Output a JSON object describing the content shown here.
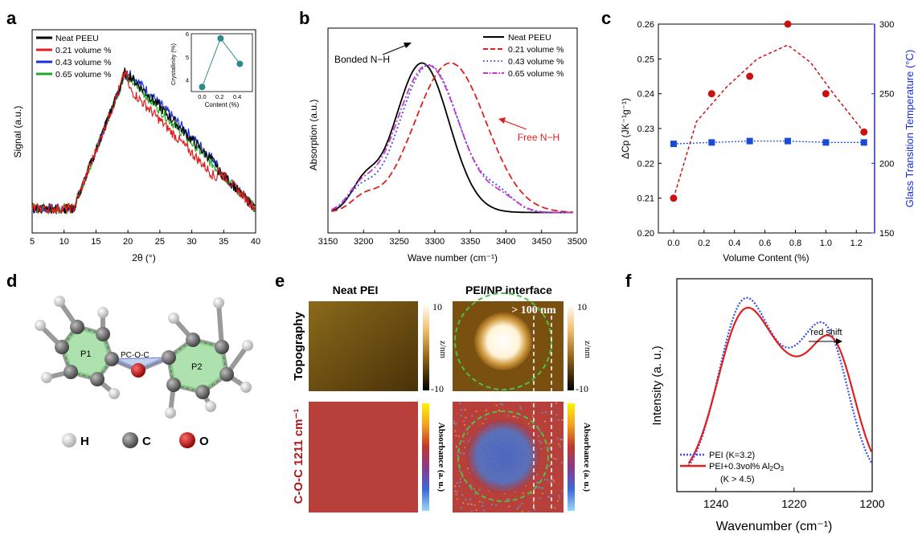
{
  "panels": {
    "a": "a",
    "b": "b",
    "c": "c",
    "d": "d",
    "e": "e",
    "f": "f"
  },
  "colors": {
    "black": "#000000",
    "red": "#e02020",
    "blue": "#1a2ee0",
    "green": "#22aa22",
    "teal": "#2e8a8a",
    "dashred": "#e02020",
    "dotblue": "#3a4de8",
    "magenta": "#cc33cc",
    "ptred": "#cc1111",
    "ptblue": "#1a4ad8",
    "ringgreen": "#49c24a"
  },
  "chart_data": [
    {
      "panel": "a",
      "type": "line",
      "xlabel": "2θ (°)",
      "ylabel": "Signal (a.u.)",
      "xlim": [
        5,
        40
      ],
      "xticks": [
        "5",
        "10",
        "15",
        "20",
        "25",
        "30",
        "35",
        "40"
      ],
      "series": [
        {
          "name": "Neat PEEU",
          "color": "#000000"
        },
        {
          "name": "0.21 volume %",
          "color": "#e02020"
        },
        {
          "name": "0.43 volume %",
          "color": "#1a2ee0"
        },
        {
          "name": "0.65 volume %",
          "color": "#22aa22"
        }
      ],
      "inset": {
        "type": "line",
        "xlabel": "Content (%)",
        "ylabel": "Crystallinity (%)",
        "x": [
          0.0,
          0.21,
          0.43
        ],
        "y": [
          3.7,
          5.8,
          4.7
        ],
        "xticks": [
          "0.0",
          "0.2",
          "0.4"
        ],
        "yticks": [
          "4",
          "5",
          "6"
        ],
        "ylim": [
          3.5,
          6
        ]
      }
    },
    {
      "panel": "b",
      "type": "line",
      "xlabel": "Wave number (cm⁻¹)",
      "ylabel": "Absorption (a.u.)",
      "xlim": [
        3150,
        3500
      ],
      "xticks": [
        "3150",
        "3200",
        "3250",
        "3300",
        "3350",
        "3400",
        "3450",
        "3500"
      ],
      "series": [
        {
          "name": "Neat PEEU",
          "color": "#000000",
          "style": "solid"
        },
        {
          "name": "0.21 volume %",
          "color": "#e02020",
          "style": "dashed"
        },
        {
          "name": "0.43 volume %",
          "color": "#3a4de8",
          "style": "dotted"
        },
        {
          "name": "0.65 volume %",
          "color": "#cc33cc",
          "style": "dashdot"
        }
      ],
      "annotations": [
        "Bonded N−H",
        "Free N−H"
      ]
    },
    {
      "panel": "c",
      "type": "scatter",
      "xlabel": "Volume Content (%)",
      "ylabel_left": "ΔCp (JK⁻¹g⁻¹)",
      "ylabel_right": "Glass Transition Temperature (°C)",
      "xlim": [
        -0.1,
        1.32
      ],
      "ylim_left": [
        0.2,
        0.26
      ],
      "ylim_right": [
        150,
        300
      ],
      "xticks": [
        "0.0",
        "0.2",
        "0.4",
        "0.6",
        "0.8",
        "1.0",
        "1.2"
      ],
      "yticks_left": [
        "0.20",
        "0.21",
        "0.22",
        "0.23",
        "0.24",
        "0.25",
        "0.26"
      ],
      "yticks_right": [
        "150",
        "200",
        "250",
        "300"
      ],
      "series": [
        {
          "axis": "left",
          "color": "#cc1111",
          "x": [
            0.0,
            0.25,
            0.5,
            0.75,
            1.0,
            1.25
          ],
          "y": [
            0.21,
            0.24,
            0.245,
            0.26,
            0.24,
            0.229
          ]
        },
        {
          "axis": "right",
          "color": "#1a4ad8",
          "x": [
            0.0,
            0.25,
            0.5,
            0.75,
            1.0,
            1.25
          ],
          "y": [
            214,
            215,
            216,
            216,
            215,
            215
          ]
        }
      ]
    },
    {
      "panel": "f",
      "type": "line",
      "xlabel": "Wavenumber (cm⁻¹)",
      "ylabel": "Intensity (a. u.)",
      "xlim": [
        1250,
        1200
      ],
      "xticks": [
        "1240",
        "1220",
        "1200"
      ],
      "series": [
        {
          "name": "PEI (K=3.2)",
          "color": "#3a4de8",
          "style": "dotted"
        },
        {
          "name": "PEI+0.3vol% Al2O3 (K > 4.5)",
          "color": "#e02020",
          "style": "solid"
        }
      ],
      "annotations": [
        "red shift"
      ]
    }
  ],
  "panel_d": {
    "legend": [
      "H",
      "C",
      "O"
    ],
    "ring_labels": [
      "P1",
      "P2",
      "PC-O-C"
    ]
  },
  "panel_e": {
    "col_titles": [
      "Neat PEI",
      "PEI/NP interface"
    ],
    "row_titles": [
      "Topography",
      "C-O-C 1211 cm⁻¹"
    ],
    "topo_scale": {
      "top": "10",
      "bottom": "-10",
      "unit": "z/nm"
    },
    "abs_scale": {
      "label": "Absorbance (a. u.)"
    },
    "annotation": "> 100 nm"
  }
}
